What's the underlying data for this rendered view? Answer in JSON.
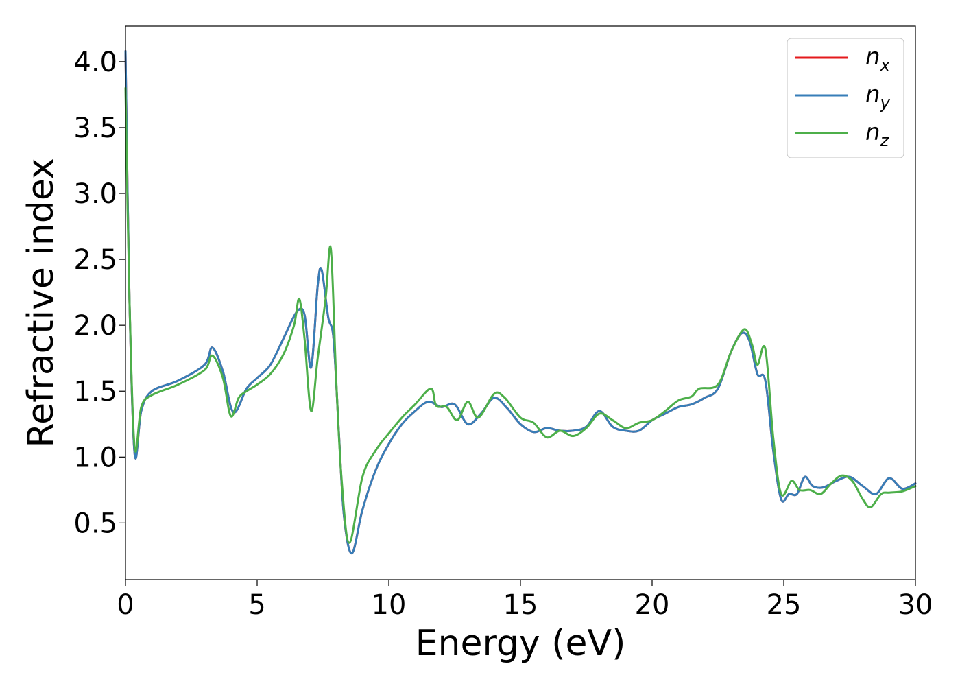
{
  "chart_data": {
    "type": "line",
    "title": "",
    "xlabel": "Energy (eV)",
    "ylabel": "Refractive index",
    "xlim": [
      0,
      30
    ],
    "ylim": [
      0.07,
      4.27
    ],
    "xticks": [
      0,
      5,
      10,
      15,
      20,
      25,
      30
    ],
    "xtick_labels": [
      "0",
      "5",
      "10",
      "15",
      "20",
      "25",
      "30"
    ],
    "yticks": [
      0.5,
      1.0,
      1.5,
      2.0,
      2.5,
      3.0,
      3.5,
      4.0
    ],
    "ytick_labels": [
      "0.5",
      "1.0",
      "1.5",
      "2.0",
      "2.5",
      "3.0",
      "3.5",
      "4.0"
    ],
    "grid": false,
    "legend_position": "top-right",
    "legend": [
      {
        "base": "n",
        "sub": "x",
        "color": "#e41a1c"
      },
      {
        "base": "n",
        "sub": "y",
        "color": "#377eb8"
      },
      {
        "base": "n",
        "sub": "z",
        "color": "#4daf4a"
      }
    ],
    "series": [
      {
        "name": "n_x",
        "color": "#e41a1c",
        "x": [
          0,
          0.15,
          0.35,
          0.6,
          1,
          2,
          3,
          3.3,
          3.7,
          4.1,
          4.6,
          5,
          5.5,
          6,
          6.5,
          6.8,
          7.05,
          7.3,
          7.45,
          7.7,
          7.9,
          8.1,
          8.3,
          8.6,
          9,
          9.5,
          10,
          10.5,
          11,
          11.5,
          12,
          12.5,
          13,
          13.5,
          14,
          14.5,
          15,
          15.5,
          16,
          16.5,
          17,
          17.5,
          18,
          18.5,
          19,
          19.5,
          20,
          20.5,
          21,
          21.5,
          22,
          22.5,
          23,
          23.4,
          23.7,
          24,
          24.3,
          24.6,
          24.9,
          25.2,
          25.5,
          25.8,
          26.1,
          26.5,
          27,
          27.5,
          28,
          28.5,
          29,
          29.5,
          30
        ],
        "y": [
          4.08,
          2.2,
          1.02,
          1.35,
          1.5,
          1.58,
          1.7,
          1.83,
          1.65,
          1.34,
          1.52,
          1.6,
          1.7,
          1.9,
          2.1,
          2.08,
          1.68,
          2.3,
          2.42,
          2.06,
          1.9,
          1.2,
          0.55,
          0.27,
          0.6,
          0.9,
          1.1,
          1.25,
          1.35,
          1.42,
          1.38,
          1.4,
          1.25,
          1.33,
          1.45,
          1.37,
          1.25,
          1.19,
          1.22,
          1.2,
          1.2,
          1.23,
          1.35,
          1.23,
          1.2,
          1.2,
          1.28,
          1.33,
          1.38,
          1.4,
          1.45,
          1.52,
          1.8,
          1.94,
          1.88,
          1.63,
          1.58,
          1.05,
          0.68,
          0.72,
          0.72,
          0.85,
          0.78,
          0.77,
          0.82,
          0.85,
          0.78,
          0.72,
          0.84,
          0.76,
          0.8
        ]
      },
      {
        "name": "n_y",
        "color": "#377eb8",
        "x": [
          0,
          0.15,
          0.35,
          0.6,
          1,
          2,
          3,
          3.3,
          3.7,
          4.1,
          4.6,
          5,
          5.5,
          6,
          6.5,
          6.8,
          7.05,
          7.3,
          7.45,
          7.7,
          7.9,
          8.1,
          8.3,
          8.6,
          9,
          9.5,
          10,
          10.5,
          11,
          11.5,
          12,
          12.5,
          13,
          13.5,
          14,
          14.5,
          15,
          15.5,
          16,
          16.5,
          17,
          17.5,
          18,
          18.5,
          19,
          19.5,
          20,
          20.5,
          21,
          21.5,
          22,
          22.5,
          23,
          23.4,
          23.7,
          24,
          24.3,
          24.6,
          24.9,
          25.2,
          25.5,
          25.8,
          26.1,
          26.5,
          27,
          27.5,
          28,
          28.5,
          29,
          29.5,
          30
        ],
        "y": [
          4.08,
          2.2,
          1.02,
          1.35,
          1.5,
          1.58,
          1.7,
          1.83,
          1.65,
          1.34,
          1.52,
          1.6,
          1.7,
          1.9,
          2.1,
          2.08,
          1.68,
          2.3,
          2.42,
          2.06,
          1.9,
          1.2,
          0.55,
          0.27,
          0.6,
          0.9,
          1.1,
          1.25,
          1.35,
          1.42,
          1.38,
          1.4,
          1.25,
          1.33,
          1.45,
          1.37,
          1.25,
          1.19,
          1.22,
          1.2,
          1.2,
          1.23,
          1.35,
          1.23,
          1.2,
          1.2,
          1.28,
          1.33,
          1.38,
          1.4,
          1.45,
          1.52,
          1.8,
          1.94,
          1.88,
          1.63,
          1.58,
          1.05,
          0.68,
          0.72,
          0.72,
          0.85,
          0.78,
          0.77,
          0.82,
          0.85,
          0.78,
          0.72,
          0.84,
          0.76,
          0.8
        ]
      },
      {
        "name": "n_z",
        "color": "#4daf4a",
        "x": [
          0,
          0.15,
          0.35,
          0.6,
          1,
          2,
          3,
          3.3,
          3.7,
          4.0,
          4.3,
          4.6,
          5,
          5.5,
          6,
          6.4,
          6.6,
          6.8,
          7.05,
          7.3,
          7.6,
          7.8,
          8.0,
          8.2,
          8.5,
          9,
          9.5,
          10,
          10.5,
          11,
          11.6,
          11.8,
          12.2,
          12.6,
          13,
          13.4,
          14,
          14.4,
          15,
          15.5,
          16,
          16.5,
          17,
          17.5,
          18,
          18.5,
          19,
          19.5,
          20,
          20.5,
          21,
          21.5,
          21.8,
          22.5,
          23,
          23.5,
          23.8,
          24,
          24.3,
          24.6,
          24.9,
          25.3,
          25.6,
          26,
          26.4,
          26.8,
          27.2,
          27.6,
          28,
          28.3,
          28.7,
          29,
          29.5,
          30
        ],
        "y": [
          3.8,
          2.2,
          1.07,
          1.38,
          1.47,
          1.55,
          1.66,
          1.77,
          1.6,
          1.31,
          1.45,
          1.5,
          1.55,
          1.63,
          1.78,
          2.0,
          2.2,
          1.9,
          1.35,
          1.75,
          2.2,
          2.58,
          1.6,
          0.85,
          0.35,
          0.85,
          1.05,
          1.18,
          1.3,
          1.4,
          1.52,
          1.39,
          1.38,
          1.28,
          1.42,
          1.3,
          1.48,
          1.45,
          1.3,
          1.26,
          1.15,
          1.2,
          1.16,
          1.22,
          1.33,
          1.28,
          1.22,
          1.26,
          1.28,
          1.35,
          1.43,
          1.46,
          1.52,
          1.55,
          1.8,
          1.97,
          1.85,
          1.7,
          1.82,
          1.15,
          0.72,
          0.82,
          0.75,
          0.75,
          0.72,
          0.8,
          0.86,
          0.82,
          0.68,
          0.62,
          0.72,
          0.73,
          0.74,
          0.78
        ]
      }
    ]
  }
}
